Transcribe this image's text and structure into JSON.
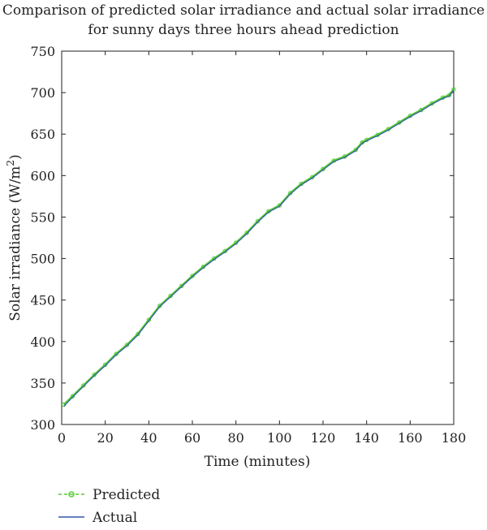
{
  "chart_data": {
    "type": "line",
    "title_lines": [
      "Comparison of predicted solar irradiance and actual solar irradiance",
      "for sunny days three hours ahead prediction"
    ],
    "xlabel": "Time (minutes)",
    "ylabel": "Solar irradiance (W/m",
    "ylabel_sup": "2",
    "ylabel_tail": ")",
    "xlim": [
      0,
      180
    ],
    "ylim": [
      300,
      750
    ],
    "xticks": [
      0,
      20,
      40,
      60,
      80,
      100,
      120,
      140,
      160,
      180
    ],
    "yticks": [
      300,
      350,
      400,
      450,
      500,
      550,
      600,
      650,
      700,
      750
    ],
    "grid": false,
    "legend_position": "bottom-left, outside plot",
    "x": [
      1,
      5,
      10,
      15,
      20,
      25,
      30,
      35,
      40,
      45,
      50,
      55,
      60,
      65,
      70,
      75,
      80,
      85,
      90,
      95,
      100,
      105,
      110,
      115,
      120,
      125,
      130,
      135,
      138,
      140,
      145,
      150,
      155,
      160,
      165,
      170,
      175,
      178,
      180
    ],
    "series": [
      {
        "name": "Predicted",
        "color": "#55cc33",
        "marker": "circle",
        "values": [
          324,
          334,
          347,
          360,
          372,
          385,
          396,
          409,
          426,
          443,
          455,
          467,
          479,
          490,
          500,
          509,
          519,
          531,
          545,
          557,
          564,
          579,
          590,
          598,
          608,
          618,
          623,
          631,
          640,
          643,
          649,
          656,
          664,
          672,
          679,
          687,
          694,
          697,
          704
        ]
      },
      {
        "name": "Actual",
        "color": "#3355aa",
        "marker": "none",
        "values": [
          322,
          333,
          346,
          359,
          371,
          384,
          395,
          408,
          425,
          442,
          454,
          466,
          478,
          489,
          499,
          508,
          518,
          530,
          544,
          556,
          563,
          578,
          589,
          597,
          607,
          617,
          622,
          630,
          639,
          642,
          648,
          655,
          663,
          671,
          678,
          686,
          693,
          696,
          703
        ]
      }
    ]
  }
}
